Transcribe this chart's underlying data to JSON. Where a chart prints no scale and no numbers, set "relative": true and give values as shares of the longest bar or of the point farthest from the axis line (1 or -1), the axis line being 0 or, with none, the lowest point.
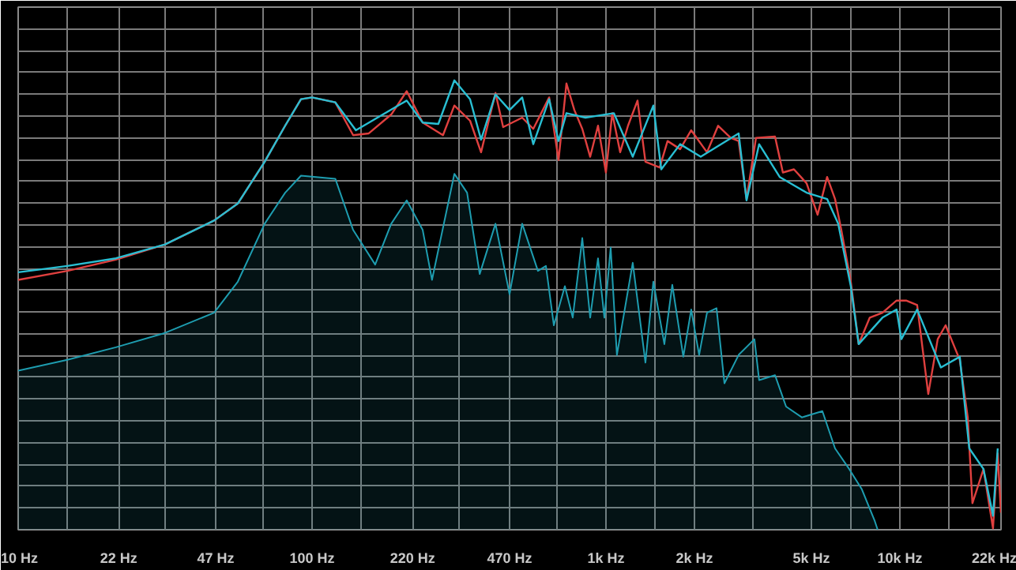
{
  "chart_data": {
    "type": "line",
    "relative": true,
    "log": "x",
    "grid": true,
    "xlim": [
      10,
      22100
    ],
    "xticks": [
      {
        "value": 10,
        "label": "10 Hz"
      },
      {
        "value": 14.68,
        "label": null
      },
      {
        "value": 22,
        "label": "22 Hz"
      },
      {
        "value": 31.62,
        "label": null
      },
      {
        "value": 47,
        "label": "47 Hz"
      },
      {
        "value": 68.13,
        "label": null
      },
      {
        "value": 100,
        "label": "100 Hz"
      },
      {
        "value": 146.8,
        "label": null
      },
      {
        "value": 220,
        "label": "220 Hz"
      },
      {
        "value": 316.2,
        "label": null
      },
      {
        "value": 470,
        "label": "470 Hz"
      },
      {
        "value": 681.3,
        "label": null
      },
      {
        "value": 1000,
        "label": "1k Hz"
      },
      {
        "value": 1468,
        "label": null
      },
      {
        "value": 2000,
        "label": "2k Hz"
      },
      {
        "value": 3162,
        "label": null
      },
      {
        "value": 5000,
        "label": "5k Hz"
      },
      {
        "value": 6813,
        "label": null
      },
      {
        "value": 10000,
        "label": "10k Hz"
      },
      {
        "value": 14678,
        "label": null
      },
      {
        "value": 22000,
        "label": "22k Hz"
      }
    ],
    "series": [
      {
        "type": "area",
        "color": "#1e9db0",
        "x": [
          10,
          14.7,
          21.5,
          31.6,
          46.4,
          55.9,
          69.0,
          81.0,
          91.7,
          120,
          138,
          164,
          186,
          210,
          238,
          256,
          305,
          337,
          372,
          421,
          470,
          519,
          587,
          625,
          665,
          725,
          771,
          831,
          884,
          940,
          988,
          1038,
          1090,
          1234,
          1363,
          1450,
          1581,
          1682,
          1834,
          1951,
          2076,
          2208,
          2379,
          2531,
          2829,
          3202,
          3322,
          3762,
          4103,
          4642,
          5453,
          6022,
          6730,
          7430,
          8204,
          8410
        ],
        "values": [
          0.354,
          0.378,
          0.406,
          0.438,
          0.483,
          0.552,
          0.681,
          0.75,
          0.788,
          0.781,
          0.667,
          0.59,
          0.681,
          0.733,
          0.667,
          0.556,
          0.792,
          0.75,
          0.569,
          0.681,
          0.524,
          0.681,
          0.576,
          0.587,
          0.455,
          0.542,
          0.472,
          0.649,
          0.472,
          0.604,
          0.472,
          0.628,
          0.389,
          0.594,
          0.372,
          0.552,
          0.413,
          0.545,
          0.385,
          0.49,
          0.389,
          0.483,
          0.493,
          0.326,
          0.389,
          0.424,
          0.333,
          0.344,
          0.274,
          0.25,
          0.264,
          0.181,
          0.135,
          0.09,
          0.021,
          0
        ]
      },
      {
        "color": "#e0403f",
        "x": [
          10,
          14.7,
          21.5,
          31.6,
          46.4,
          55.9,
          69.0,
          81.0,
          91.7,
          100,
          120,
          138,
          156,
          186,
          210,
          238,
          279,
          305,
          345,
          376,
          421,
          447,
          519,
          566,
          641,
          690,
          734,
          781,
          831,
          884,
          940,
          1000,
          1051,
          1118,
          1189,
          1281,
          1363,
          1524,
          1621,
          1789,
          1951,
          2208,
          2409,
          2659,
          2829,
          3010,
          3242,
          3762,
          4001,
          4364,
          4818,
          5253,
          5659,
          6022,
          6324,
          6813,
          7247,
          7905,
          8730,
          9753,
          10507,
          11457,
          12500,
          13460,
          14320,
          16000,
          17030,
          17670,
          19270,
          20760,
          21540,
          22090
        ],
        "values": [
          0.556,
          0.576,
          0.601,
          0.635,
          0.688,
          0.726,
          0.819,
          0.899,
          0.958,
          0.962,
          0.951,
          0.878,
          0.882,
          0.924,
          0.976,
          0.906,
          0.878,
          0.944,
          0.91,
          0.84,
          0.972,
          0.896,
          0.917,
          0.892,
          0.962,
          0.823,
          0.993,
          0.934,
          0.892,
          0.83,
          0.899,
          0.795,
          0.927,
          0.84,
          0.899,
          0.955,
          0.819,
          0.806,
          0.865,
          0.847,
          0.889,
          0.84,
          0.899,
          0.872,
          0.865,
          0.736,
          0.872,
          0.875,
          0.795,
          0.802,
          0.771,
          0.701,
          0.785,
          0.736,
          0.667,
          0.552,
          0.413,
          0.472,
          0.483,
          0.51,
          0.51,
          0.5,
          0.302,
          0.424,
          0.455,
          0.378,
          0.25,
          0.059,
          0.135,
          0.003,
          0.17,
          0.038
        ]
      },
      {
        "color": "#29bfd3",
        "x": [
          10,
          14.7,
          21.5,
          31.6,
          46.4,
          55.9,
          69.0,
          81.0,
          91.7,
          100,
          120,
          141,
          210,
          238,
          269,
          305,
          345,
          376,
          421,
          470,
          519,
          566,
          641,
          690,
          734,
          852,
          1064,
          1234,
          1450,
          1543,
          1789,
          2102,
          2829,
          3010,
          3322,
          3903,
          4818,
          5659,
          6171,
          6813,
          7247,
          8730,
          9753,
          10125,
          11457,
          13800,
          16000,
          17240,
          19270,
          20760,
          21540
        ],
        "values": [
          0.573,
          0.587,
          0.604,
          0.635,
          0.688,
          0.726,
          0.819,
          0.899,
          0.958,
          0.962,
          0.951,
          0.889,
          0.955,
          0.906,
          0.903,
          1.0,
          0.958,
          0.868,
          0.969,
          0.934,
          0.962,
          0.858,
          0.958,
          0.865,
          0.927,
          0.917,
          0.927,
          0.83,
          0.944,
          0.802,
          0.858,
          0.83,
          0.882,
          0.733,
          0.858,
          0.785,
          0.75,
          0.736,
          0.681,
          0.542,
          0.413,
          0.472,
          0.49,
          0.424,
          0.49,
          0.361,
          0.385,
          0.181,
          0.135,
          0.031,
          0.181
        ]
      }
    ]
  }
}
